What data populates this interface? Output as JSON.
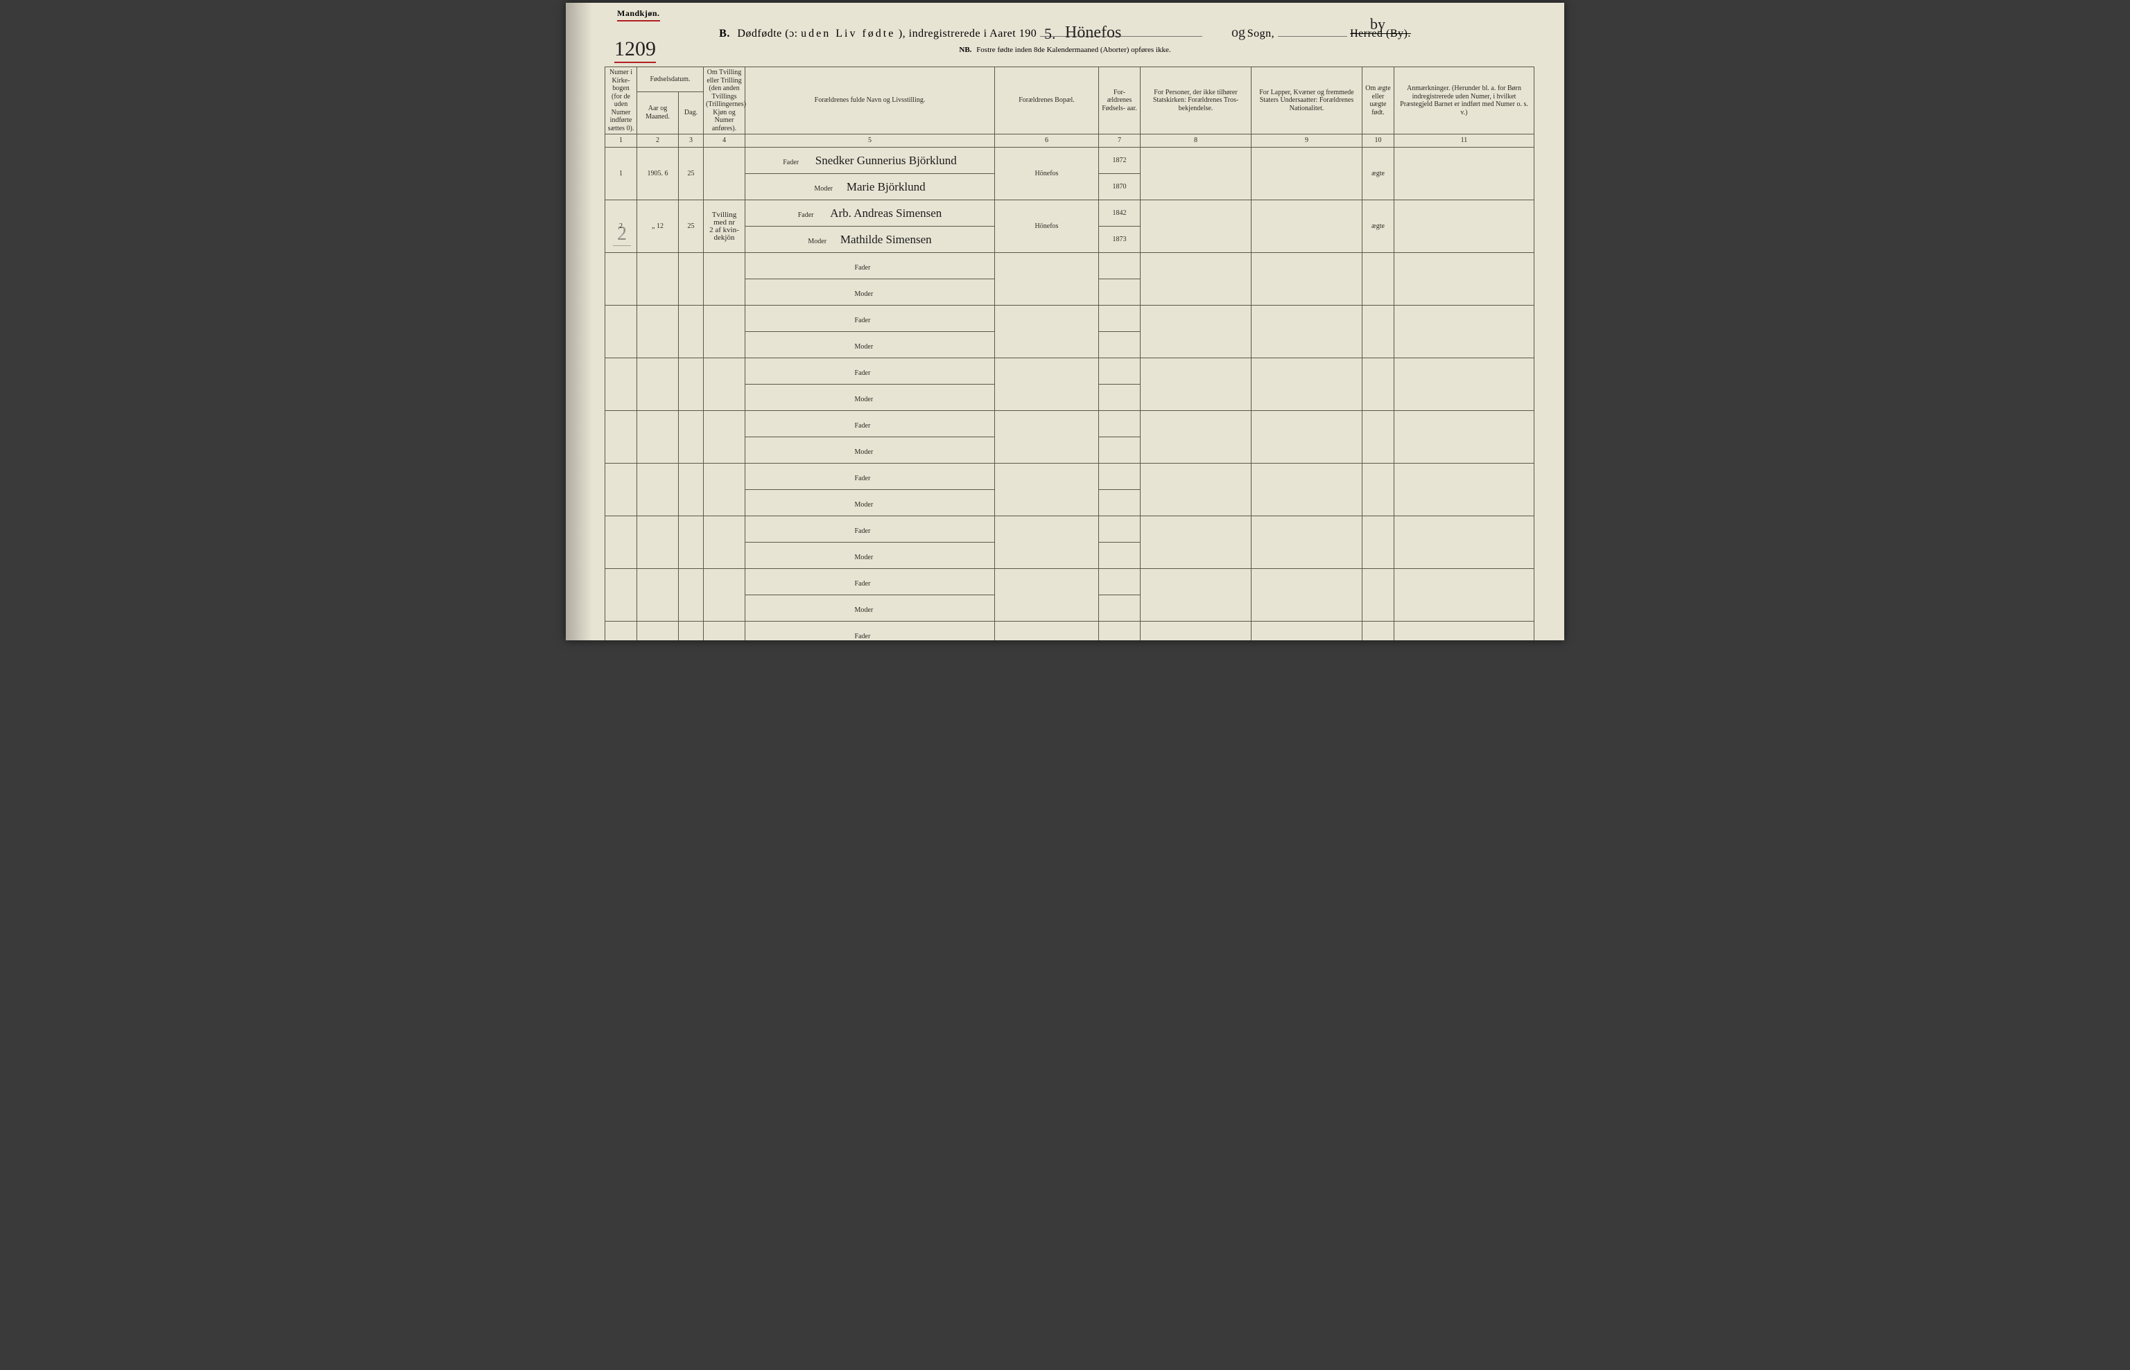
{
  "header": {
    "topLabel": "Mandkjøn.",
    "titlePrefix": "B.",
    "titleMain": "Dødfødte (ɔ:",
    "titleSpaced": "uden Liv fødte",
    "titleSuffix": "), indregistrerede i Aaret 190",
    "sognLabel": "Sogn,",
    "herredLabel": "Herred (By).",
    "subtitleNB": "NB.",
    "subtitleText": "Fostre fødte inden 8de Kalendermaaned (Aborter) opføres ikke.",
    "hwYearDigit": "5.",
    "hwSogn": "Hönefos",
    "hwOg": "og",
    "hwBy": "by",
    "hwPageNumber": "1209"
  },
  "columns": {
    "c1": "Numer i Kirke-\nbogen\n(for de\nuden\nNumer\nindførte\nsættes\n0).",
    "c2top": "Fødselsdatum.",
    "c2a": "Aar\nog\nMaaned.",
    "c2b": "Dag.",
    "c4": "Om Tvilling\neller Trilling\n(den anden\nTvillings\n(Trillingernes)\nKjøn og\nNumer\nanføres).",
    "c5": "Forældrenes fulde Navn og Livsstilling.",
    "c6": "Forældrenes Bopæl.",
    "c7": "For-\nældrenes\nFødsels-\naar.",
    "c8": "For Personer, der ikke\ntilhører Statskirken:\nForældrenes Tros-\nbekjendelse.",
    "c9": "For Lapper, Kvæner og\nfremmede Staters\nUndersaatter:\nForældrenes Nationalitet.",
    "c10": "Om\nægte\neller\nuægte\nfødt.",
    "c11": "Anmærkninger.\n(Herunder bl. a. for Børn indregistrerede\nuden Numer, i hvilket Præstegjeld Barnet\ner indført med Numer o. s. v.)",
    "nums": [
      "1",
      "2",
      "3",
      "4",
      "5",
      "6",
      "7",
      "8",
      "9",
      "10",
      "11"
    ]
  },
  "labels": {
    "fader": "Fader",
    "moder": "Moder"
  },
  "rows": [
    {
      "num": "1",
      "aarMaaned": "1905. 6",
      "dag": "25",
      "tvilling": "",
      "fader": "Snedker Gunnerius Björklund",
      "moder": "Marie Björklund",
      "bopel": "Hönefos",
      "faderAar": "1872",
      "moderAar": "1870",
      "tros": "",
      "nat": "",
      "aegte": "ægte",
      "anm": ""
    },
    {
      "num": "2",
      "aarMaaned": "„   12",
      "dag": "25",
      "tvilling": "Tvilling\nmed nr\n2 af kvin-\ndekjön",
      "fader": "Arb. Andreas Simensen",
      "moder": "Mathilde Simensen",
      "bopel": "Hönefos",
      "faderAar": "1842",
      "moderAar": "1873",
      "tros": "",
      "nat": "",
      "aegte": "ægte",
      "anm": ""
    }
  ],
  "emptyPairs": 8,
  "pencilTotal": "2",
  "style": {
    "pageBg": "#e8e4d4",
    "border": "#5a584a",
    "underlineRed": "#b02020",
    "inkColor": "#1a1a1a",
    "printColor": "#2a2a22",
    "hwFont": "Brush Script MT",
    "printFont": "Times New Roman",
    "titleFontSize": 16,
    "headerFontSize": 10,
    "hwFontSize": 17,
    "colWidthsPx": [
      46,
      60,
      36,
      60,
      360,
      150,
      60,
      160,
      160,
      46,
      202
    ],
    "rowHeightPx": 33
  }
}
